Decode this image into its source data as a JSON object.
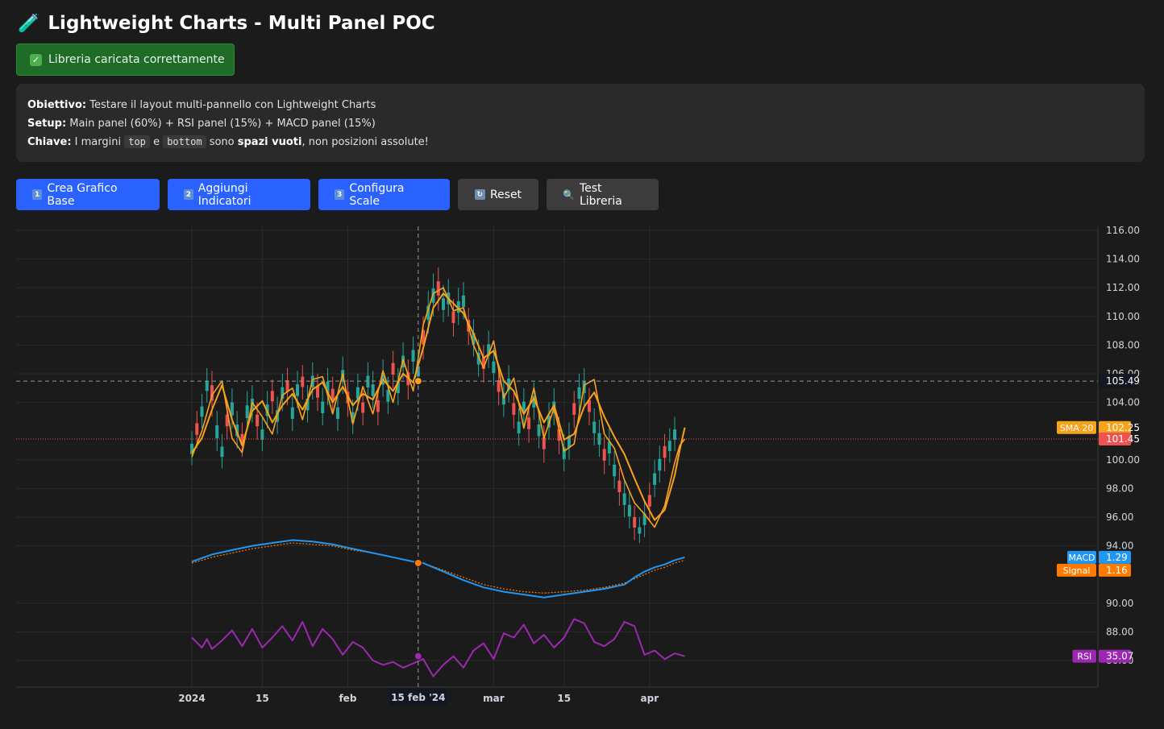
{
  "header": {
    "title": "Lightweight Charts - Multi Panel POC",
    "icon": "test-tube-icon"
  },
  "status": {
    "text": "Libreria caricata correttamente",
    "icon": "check-icon"
  },
  "info": {
    "obiettivo_label": "Obiettivo:",
    "obiettivo_text": "Testare il layout multi-pannello con Lightweight Charts",
    "setup_label": "Setup:",
    "setup_text": "Main panel (60%) + RSI panel (15%) + MACD panel (15%)",
    "chiave_label": "Chiave:",
    "chiave_pre": "I margini",
    "code_top": "top",
    "chiave_e": "e",
    "code_bottom": "bottom",
    "chiave_mid": "sono",
    "chiave_bold": "spazi vuoti",
    "chiave_post": ", non posizioni assolute!"
  },
  "toolbar": {
    "buttons": [
      {
        "label": "Crea Grafico Base",
        "keycap": "1",
        "icon": "keycap-one-icon"
      },
      {
        "label": "Aggiungi Indicatori",
        "keycap": "2",
        "icon": "keycap-two-icon"
      },
      {
        "label": "Configura Scale",
        "keycap": "3",
        "icon": "keycap-three-icon"
      },
      {
        "label": "Reset",
        "keycap": "↻",
        "icon": "refresh-icon"
      },
      {
        "label": "Test Libreria",
        "keycap": "🔍",
        "icon": "magnifier-icon"
      }
    ]
  },
  "colors": {
    "up": "#26a69a",
    "down": "#ef5350",
    "sma": "#f7a21b",
    "macd": "#2196f3",
    "signal": "#ff7b00",
    "rsi": "#9c27b0",
    "background": "#1b1b1b",
    "grid": "#2b2b2b"
  },
  "chart_data": {
    "type": "line",
    "title": "",
    "y_axis": {
      "ticks": [
        "116.00",
        "114.00",
        "112.00",
        "110.00",
        "108.00",
        "106.00",
        "104.00",
        "100.00",
        "98.00",
        "96.00",
        "94.00",
        "90.00",
        "88.00",
        "86.00"
      ],
      "ylim": [
        85,
        116.3
      ]
    },
    "x_axis": {
      "ticks": [
        {
          "label": "2024",
          "day": 0
        },
        {
          "label": "15",
          "day": 14
        },
        {
          "label": "feb",
          "day": 31
        },
        {
          "label": "mar",
          "day": 60
        },
        {
          "label": "15",
          "day": 74
        },
        {
          "label": "apr",
          "day": 91
        }
      ],
      "crosshair_label": "15 feb '24",
      "crosshair_day": 45
    },
    "crosshair_price": "105.49",
    "sma_line": [
      [
        0,
        100.5
      ],
      [
        2,
        101.5
      ],
      [
        4,
        103.5
      ],
      [
        6,
        105.2
      ],
      [
        8,
        102.8
      ],
      [
        10,
        101.0
      ],
      [
        12,
        103.4
      ],
      [
        14,
        104.1
      ],
      [
        16,
        102.6
      ],
      [
        18,
        103.8
      ],
      [
        20,
        104.6
      ],
      [
        22,
        103.5
      ],
      [
        24,
        104.9
      ],
      [
        26,
        105.4
      ],
      [
        28,
        104.0
      ],
      [
        30,
        105.1
      ],
      [
        32,
        103.8
      ],
      [
        34,
        104.6
      ],
      [
        36,
        104.2
      ],
      [
        38,
        105.6
      ],
      [
        40,
        104.8
      ],
      [
        42,
        106.0
      ],
      [
        44,
        105.4
      ],
      [
        46,
        107.8
      ],
      [
        48,
        110.6
      ],
      [
        50,
        111.6
      ],
      [
        52,
        110.9
      ],
      [
        54,
        110.2
      ],
      [
        56,
        108.8
      ],
      [
        58,
        107.1
      ],
      [
        60,
        107.6
      ],
      [
        62,
        105.5
      ],
      [
        64,
        104.8
      ],
      [
        66,
        103.2
      ],
      [
        68,
        104.3
      ],
      [
        70,
        102.6
      ],
      [
        72,
        103.8
      ],
      [
        74,
        101.4
      ],
      [
        76,
        101.8
      ],
      [
        78,
        103.7
      ],
      [
        80,
        104.7
      ],
      [
        82,
        103.0
      ],
      [
        84,
        101.6
      ],
      [
        86,
        100.4
      ],
      [
        88,
        98.7
      ],
      [
        90,
        97.1
      ],
      [
        92,
        95.8
      ],
      [
        94,
        96.5
      ],
      [
        96,
        98.9
      ],
      [
        97,
        100.7
      ],
      [
        98,
        102.25
      ]
    ],
    "close_line": [
      [
        0,
        100.2
      ],
      [
        2,
        102.0
      ],
      [
        4,
        104.5
      ],
      [
        6,
        105.5
      ],
      [
        8,
        101.5
      ],
      [
        10,
        100.5
      ],
      [
        12,
        104.0
      ],
      [
        14,
        103.0
      ],
      [
        16,
        101.8
      ],
      [
        18,
        104.5
      ],
      [
        20,
        105.0
      ],
      [
        22,
        102.8
      ],
      [
        24,
        105.6
      ],
      [
        26,
        105.8
      ],
      [
        28,
        103.2
      ],
      [
        30,
        106.0
      ],
      [
        32,
        102.5
      ],
      [
        34,
        105.1
      ],
      [
        36,
        103.2
      ],
      [
        38,
        106.2
      ],
      [
        40,
        104.0
      ],
      [
        42,
        107.0
      ],
      [
        44,
        104.8
      ],
      [
        46,
        109.4
      ],
      [
        48,
        111.6
      ],
      [
        50,
        112.0
      ],
      [
        52,
        110.4
      ],
      [
        54,
        110.6
      ],
      [
        56,
        108.0
      ],
      [
        58,
        106.4
      ],
      [
        60,
        108.3
      ],
      [
        62,
        104.3
      ],
      [
        64,
        105.7
      ],
      [
        66,
        102.2
      ],
      [
        68,
        105.0
      ],
      [
        70,
        101.5
      ],
      [
        72,
        103.6
      ],
      [
        74,
        100.6
      ],
      [
        76,
        101.1
      ],
      [
        78,
        105.2
      ],
      [
        80,
        105.6
      ],
      [
        82,
        101.8
      ],
      [
        84,
        100.8
      ],
      [
        86,
        98.6
      ],
      [
        88,
        97.0
      ],
      [
        90,
        96.2
      ],
      [
        92,
        95.3
      ],
      [
        94,
        96.8
      ],
      [
        96,
        99.8
      ],
      [
        97,
        101.0
      ],
      [
        98,
        101.45
      ]
    ],
    "candles": [
      [
        0,
        101.6,
        100.0
      ],
      [
        1,
        103.0,
        101.2
      ],
      [
        2,
        104.2,
        102.6
      ],
      [
        3,
        106.0,
        104.4
      ],
      [
        4,
        105.8,
        103.4
      ],
      [
        5,
        103.0,
        101.0
      ],
      [
        6,
        101.4,
        99.8
      ],
      [
        7,
        103.6,
        101.8
      ],
      [
        8,
        104.6,
        102.6
      ],
      [
        9,
        103.0,
        101.2
      ],
      [
        10,
        102.2,
        100.6
      ],
      [
        11,
        104.4,
        102.4
      ],
      [
        12,
        104.8,
        103.0
      ],
      [
        13,
        103.6,
        101.8
      ],
      [
        14,
        102.6,
        101.0
      ],
      [
        15,
        104.4,
        102.6
      ],
      [
        16,
        105.2,
        103.6
      ],
      [
        17,
        104.0,
        102.2
      ],
      [
        18,
        105.6,
        103.8
      ],
      [
        19,
        106.0,
        104.2
      ],
      [
        20,
        104.2,
        102.4
      ],
      [
        21,
        105.8,
        104.0
      ],
      [
        22,
        106.2,
        104.6
      ],
      [
        23,
        104.8,
        103.0
      ],
      [
        24,
        106.4,
        104.6
      ],
      [
        25,
        105.6,
        103.8
      ],
      [
        26,
        104.6,
        102.8
      ],
      [
        27,
        106.0,
        104.2
      ],
      [
        28,
        105.4,
        103.6
      ],
      [
        29,
        104.2,
        102.4
      ],
      [
        30,
        106.8,
        105.0
      ],
      [
        31,
        105.2,
        103.4
      ],
      [
        32,
        103.8,
        102.2
      ],
      [
        33,
        105.6,
        103.8
      ],
      [
        34,
        104.4,
        102.8
      ],
      [
        35,
        106.4,
        104.6
      ],
      [
        36,
        105.8,
        104.0
      ],
      [
        37,
        104.6,
        102.8
      ],
      [
        38,
        106.6,
        104.8
      ],
      [
        39,
        105.4,
        103.6
      ],
      [
        40,
        107.2,
        105.4
      ],
      [
        41,
        106.0,
        104.2
      ],
      [
        42,
        107.8,
        106.0
      ],
      [
        43,
        106.6,
        104.6
      ],
      [
        44,
        108.2,
        106.4
      ],
      [
        45,
        107.0,
        105.4
      ],
      [
        46,
        109.6,
        107.4
      ],
      [
        47,
        111.4,
        109.2
      ],
      [
        48,
        112.6,
        110.4
      ],
      [
        49,
        113.0,
        110.8
      ],
      [
        50,
        111.8,
        110.0
      ],
      [
        51,
        112.2,
        110.4
      ],
      [
        52,
        110.8,
        109.0
      ],
      [
        53,
        111.6,
        109.8
      ],
      [
        54,
        112.0,
        110.2
      ],
      [
        55,
        110.2,
        108.4
      ],
      [
        56,
        109.4,
        107.6
      ],
      [
        57,
        108.0,
        106.2
      ],
      [
        58,
        107.6,
        105.8
      ],
      [
        59,
        108.6,
        106.8
      ],
      [
        60,
        107.4,
        105.6
      ],
      [
        61,
        106.0,
        104.2
      ],
      [
        62,
        105.2,
        103.4
      ],
      [
        63,
        106.2,
        104.4
      ],
      [
        64,
        104.4,
        102.6
      ],
      [
        65,
        103.2,
        101.4
      ],
      [
        66,
        104.6,
        102.8
      ],
      [
        67,
        103.4,
        101.6
      ],
      [
        68,
        105.0,
        103.2
      ],
      [
        69,
        103.0,
        101.2
      ],
      [
        70,
        102.0,
        100.2
      ],
      [
        71,
        103.6,
        101.8
      ],
      [
        72,
        104.6,
        102.8
      ],
      [
        73,
        102.6,
        100.8
      ],
      [
        74,
        101.4,
        99.6
      ],
      [
        75,
        102.2,
        100.4
      ],
      [
        76,
        104.4,
        102.6
      ],
      [
        77,
        105.6,
        103.8
      ],
      [
        78,
        106.0,
        104.2
      ],
      [
        79,
        104.6,
        102.8
      ],
      [
        80,
        103.2,
        101.4
      ],
      [
        81,
        102.4,
        100.6
      ],
      [
        82,
        101.2,
        99.4
      ],
      [
        83,
        101.8,
        100.0
      ],
      [
        84,
        100.2,
        98.4
      ],
      [
        85,
        99.0,
        97.2
      ],
      [
        86,
        98.2,
        96.4
      ],
      [
        87,
        97.4,
        95.6
      ],
      [
        88,
        96.4,
        94.8
      ],
      [
        89,
        95.6,
        94.6
      ],
      [
        90,
        96.8,
        95.0
      ],
      [
        91,
        98.0,
        96.2
      ],
      [
        92,
        99.6,
        97.8
      ],
      [
        93,
        100.6,
        98.8
      ],
      [
        94,
        101.4,
        99.6
      ],
      [
        95,
        101.8,
        100.2
      ],
      [
        96,
        102.6,
        101.0
      ]
    ],
    "macd_line": [
      [
        0,
        92.9
      ],
      [
        4,
        93.4
      ],
      [
        8,
        93.7
      ],
      [
        12,
        94.0
      ],
      [
        16,
        94.2
      ],
      [
        20,
        94.4
      ],
      [
        24,
        94.3
      ],
      [
        28,
        94.1
      ],
      [
        32,
        93.8
      ],
      [
        36,
        93.5
      ],
      [
        40,
        93.2
      ],
      [
        44,
        92.9
      ],
      [
        46,
        92.8
      ],
      [
        50,
        92.2
      ],
      [
        54,
        91.6
      ],
      [
        58,
        91.1
      ],
      [
        62,
        90.8
      ],
      [
        66,
        90.6
      ],
      [
        70,
        90.4
      ],
      [
        74,
        90.6
      ],
      [
        78,
        90.8
      ],
      [
        82,
        91.0
      ],
      [
        86,
        91.3
      ],
      [
        88,
        91.8
      ],
      [
        90,
        92.2
      ],
      [
        92,
        92.5
      ],
      [
        94,
        92.7
      ],
      [
        96,
        93.0
      ],
      [
        98,
        93.2
      ]
    ],
    "signal_line": [
      [
        0,
        92.8
      ],
      [
        4,
        93.2
      ],
      [
        8,
        93.5
      ],
      [
        12,
        93.8
      ],
      [
        16,
        94.0
      ],
      [
        20,
        94.2
      ],
      [
        24,
        94.1
      ],
      [
        28,
        94.0
      ],
      [
        32,
        93.7
      ],
      [
        36,
        93.5
      ],
      [
        40,
        93.2
      ],
      [
        44,
        92.9
      ],
      [
        46,
        92.8
      ],
      [
        50,
        92.3
      ],
      [
        54,
        91.8
      ],
      [
        58,
        91.3
      ],
      [
        62,
        91.0
      ],
      [
        66,
        90.8
      ],
      [
        70,
        90.7
      ],
      [
        74,
        90.8
      ],
      [
        78,
        90.9
      ],
      [
        82,
        91.1
      ],
      [
        86,
        91.4
      ],
      [
        88,
        91.7
      ],
      [
        90,
        92.0
      ],
      [
        92,
        92.3
      ],
      [
        94,
        92.5
      ],
      [
        96,
        92.8
      ],
      [
        98,
        93.0
      ]
    ],
    "rsi_line": [
      [
        0,
        87.6
      ],
      [
        2,
        86.9
      ],
      [
        3,
        87.5
      ],
      [
        4,
        86.8
      ],
      [
        6,
        87.4
      ],
      [
        8,
        88.1
      ],
      [
        10,
        87.0
      ],
      [
        12,
        88.2
      ],
      [
        14,
        86.9
      ],
      [
        16,
        87.6
      ],
      [
        18,
        88.4
      ],
      [
        20,
        87.4
      ],
      [
        22,
        88.7
      ],
      [
        24,
        87.0
      ],
      [
        26,
        88.2
      ],
      [
        28,
        87.5
      ],
      [
        30,
        86.4
      ],
      [
        32,
        87.3
      ],
      [
        34,
        86.9
      ],
      [
        36,
        86.0
      ],
      [
        38,
        85.7
      ],
      [
        40,
        85.9
      ],
      [
        42,
        85.5
      ],
      [
        44,
        85.8
      ],
      [
        46,
        86.1
      ],
      [
        48,
        84.9
      ],
      [
        50,
        85.7
      ],
      [
        52,
        86.3
      ],
      [
        54,
        85.5
      ],
      [
        56,
        86.7
      ],
      [
        58,
        87.2
      ],
      [
        60,
        86.1
      ],
      [
        62,
        87.9
      ],
      [
        64,
        87.6
      ],
      [
        66,
        88.5
      ],
      [
        68,
        87.2
      ],
      [
        70,
        87.8
      ],
      [
        72,
        86.9
      ],
      [
        74,
        87.6
      ],
      [
        76,
        88.9
      ],
      [
        78,
        88.6
      ],
      [
        80,
        87.3
      ],
      [
        82,
        87.0
      ],
      [
        84,
        87.5
      ],
      [
        86,
        88.7
      ],
      [
        88,
        88.4
      ],
      [
        90,
        86.4
      ],
      [
        92,
        86.7
      ],
      [
        94,
        86.1
      ],
      [
        96,
        86.5
      ],
      [
        98,
        86.3
      ]
    ],
    "crosshair_markers": [
      {
        "series": "SMA 20",
        "day": 45,
        "value": 105.49
      },
      {
        "series": "MACD",
        "day": 45,
        "value": 92.8
      },
      {
        "series": "RSI",
        "day": 45,
        "value": 86.3
      }
    ],
    "last_price_line": 101.45,
    "price_tags": [
      {
        "name": "SMA 20",
        "value": "102.25",
        "price": 102.25
      },
      {
        "name": "",
        "value": "101.45",
        "price": 101.45
      },
      {
        "name": "MACD",
        "value": "1.29",
        "price": 93.2
      },
      {
        "name": "Signal",
        "value": "1.16",
        "price": 92.3
      },
      {
        "name": "RSI",
        "value": "35.07",
        "price": 86.3
      }
    ]
  }
}
